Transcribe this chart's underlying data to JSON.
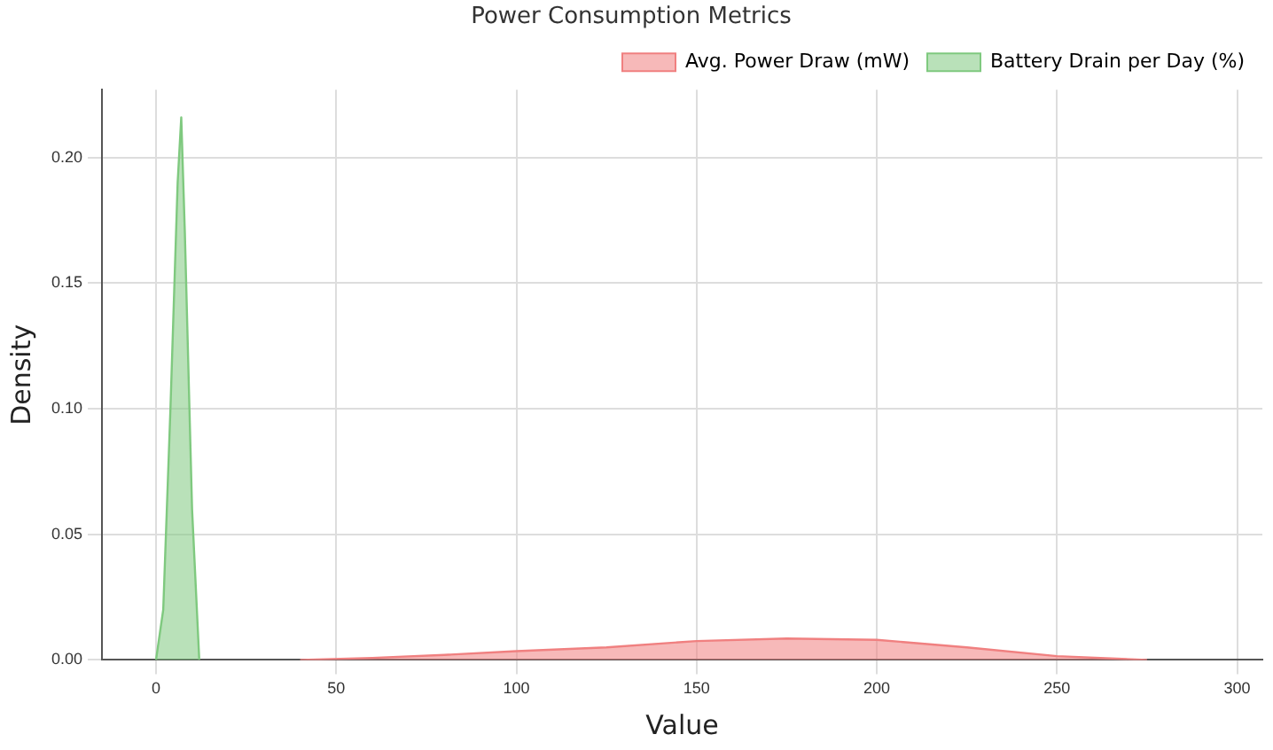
{
  "chart_data": {
    "type": "area",
    "title": "Power Consumption Metrics",
    "xlabel": "Value",
    "ylabel": "Density",
    "xlim": [
      -15,
      307
    ],
    "xticks": [
      0,
      50,
      100,
      150,
      200,
      250,
      300
    ],
    "ylim": [
      0,
      0.227
    ],
    "yticks": [
      {
        "value": 0,
        "label": "0.00"
      },
      {
        "value": 0.05,
        "label": "0.05"
      },
      {
        "value": 0.1,
        "label": "0.10"
      },
      {
        "value": 0.15,
        "label": "0.15"
      },
      {
        "value": 0.2,
        "label": "0.20"
      }
    ],
    "grid": true,
    "legend": "top right",
    "series": [
      {
        "name": "Avg. Power Draw (mW)",
        "color": "#f08080",
        "x": [
          40,
          60,
          80,
          100,
          125,
          150,
          175,
          200,
          225,
          250,
          275
        ],
        "values": [
          0,
          0.0008,
          0.002,
          0.0035,
          0.005,
          0.0075,
          0.0085,
          0.008,
          0.005,
          0.0015,
          0
        ]
      },
      {
        "name": "Battery Drain per Day (%)",
        "color": "#7fc97f",
        "x": [
          0,
          2,
          4,
          6,
          7,
          8,
          10,
          12
        ],
        "values": [
          0,
          0.02,
          0.1,
          0.19,
          0.216,
          0.17,
          0.06,
          0
        ]
      }
    ]
  }
}
